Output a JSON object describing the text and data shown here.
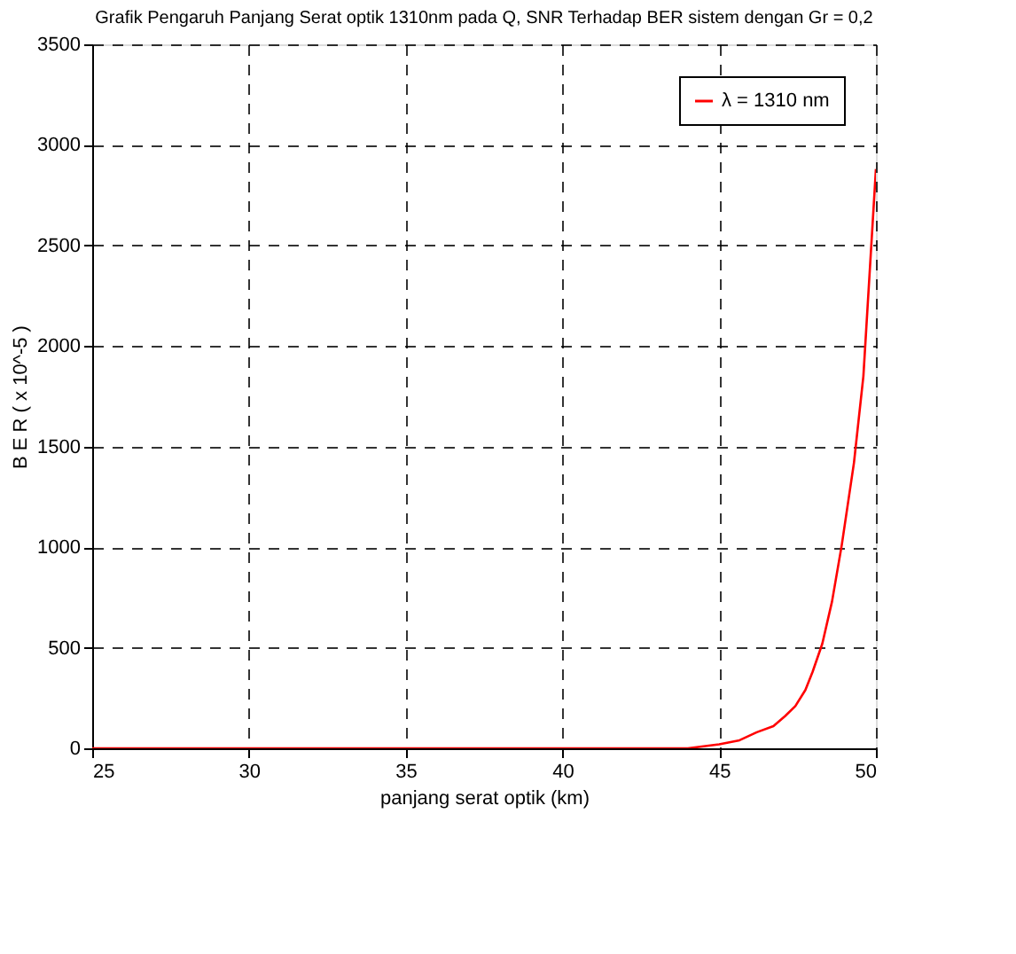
{
  "chart_data": {
    "type": "line",
    "title": "Grafik Pengaruh Panjang Serat optik 1310nm pada Q, SNR Terhadap BER sistem dengan Gr = 0,2",
    "xlabel": "panjang serat optik (km)",
    "ylabel": "B E R ( x 10^-5 )",
    "series": [
      {
        "name": "λ = 1310 nm",
        "color": "#ff0000",
        "x": [
          25,
          30,
          35,
          40,
          43,
          44,
          45,
          45.65,
          46.2,
          46.73,
          47.1,
          47.43,
          47.75,
          47.98,
          48.29,
          48.6,
          48.91,
          49.3,
          49.6,
          50
        ],
        "values": [
          0,
          0,
          0,
          0,
          0,
          0,
          20,
          40,
          80,
          110,
          160,
          210,
          290,
          380,
          520,
          730,
          1010,
          1420,
          1850,
          2880
        ]
      }
    ],
    "xlim": [
      25,
      50
    ],
    "xticks": [
      25,
      30,
      35,
      40,
      45,
      50
    ],
    "ylim": [
      0,
      3500
    ],
    "yticks": [
      0,
      500,
      1000,
      1500,
      2000,
      2500,
      3000,
      3500
    ],
    "grid": true,
    "legend": "top right",
    "line_style": "solid",
    "marker": "none"
  }
}
